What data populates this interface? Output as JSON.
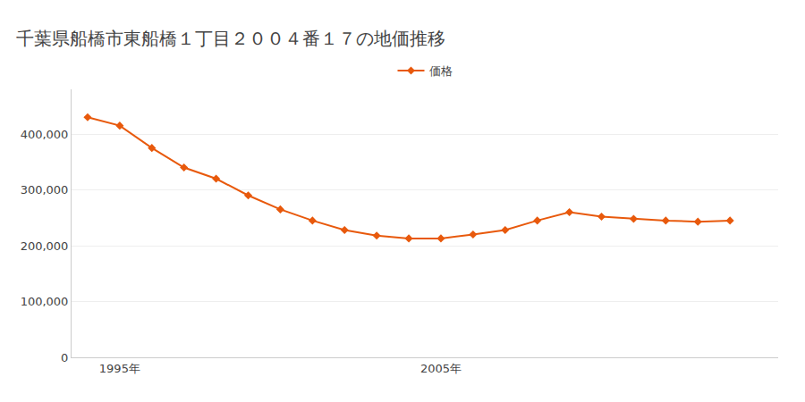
{
  "chart_data": {
    "type": "line",
    "title": "千葉県船橋市東船橋１丁目２００４番１７の地価推移",
    "x": [
      1994,
      1995,
      1996,
      1997,
      1998,
      1999,
      2000,
      2001,
      2002,
      2003,
      2004,
      2005,
      2006,
      2007,
      2008,
      2009,
      2010,
      2011,
      2012,
      2013,
      2014
    ],
    "series": [
      {
        "name": "価格",
        "color": "#e8590c",
        "marker": "diamond",
        "values": [
          430000,
          415000,
          375000,
          340000,
          320000,
          290000,
          265000,
          245000,
          228000,
          218000,
          213000,
          213000,
          220000,
          228000,
          245000,
          260000,
          252000,
          248000,
          245000,
          243000,
          245000
        ]
      }
    ],
    "xlim": [
      1993.5,
      2015.5
    ],
    "xticks": [
      {
        "value": 1995,
        "label": "1995年"
      },
      {
        "value": 2005,
        "label": "2005年"
      }
    ],
    "ylim": [
      0,
      480000
    ],
    "yticks": [
      0,
      {
        "value": 100000,
        "label": "100,000"
      },
      {
        "value": 200000,
        "label": "200,000"
      },
      {
        "value": 300000,
        "label": "300,000"
      },
      {
        "value": 400000,
        "label": "400,000"
      }
    ],
    "grid": true,
    "legend": "top"
  }
}
